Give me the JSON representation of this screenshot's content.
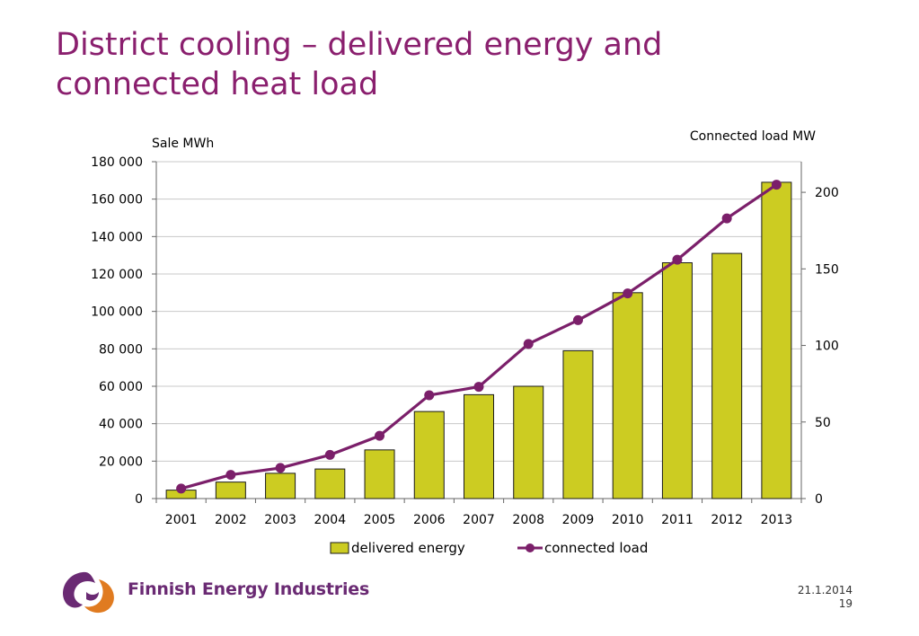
{
  "slide": {
    "title_line1": "District cooling – delivered energy and",
    "title_line2": "connected heat load",
    "logo_text": "Finnish Energy Industries",
    "date": "21.1.2014",
    "page_number": "19"
  },
  "colors": {
    "title": "#8a1f6e",
    "bar_fill": "#cccc22",
    "bar_stroke": "#1a1a1a",
    "line": "#7b1f6a",
    "grid": "#c8c8c8",
    "logo_purple": "#6a2a73",
    "logo_orange": "#e07b20"
  },
  "chart_data": {
    "type": "bar",
    "title": "",
    "categories": [
      "2001",
      "2002",
      "2003",
      "2004",
      "2005",
      "2006",
      "2007",
      "2008",
      "2009",
      "2010",
      "2011",
      "2012",
      "2013"
    ],
    "y_left_label": "Sale MWh",
    "y_right_label": "Connected load MW",
    "y_left_ticks": [
      "0",
      "20 000",
      "40 000",
      "60 000",
      "80 000",
      "100 000",
      "120 000",
      "140 000",
      "160 000",
      "180 000"
    ],
    "y_right_ticks": [
      "0",
      "50",
      "100",
      "150",
      "200"
    ],
    "ylim_left": [
      0,
      180000
    ],
    "ylim_right": [
      0,
      220
    ],
    "grid": true,
    "legend_position": "bottom",
    "series": [
      {
        "name": "delivered energy",
        "type": "bar",
        "axis": "left",
        "values": [
          4500,
          8800,
          13500,
          15800,
          26000,
          46500,
          55500,
          60000,
          79000,
          110000,
          126000,
          131000,
          169000
        ]
      },
      {
        "name": "connected load",
        "type": "line",
        "axis": "right",
        "values": [
          6.5,
          15.5,
          20,
          28.5,
          41,
          67.5,
          73,
          101,
          116.5,
          134,
          156,
          183,
          205
        ]
      }
    ]
  }
}
